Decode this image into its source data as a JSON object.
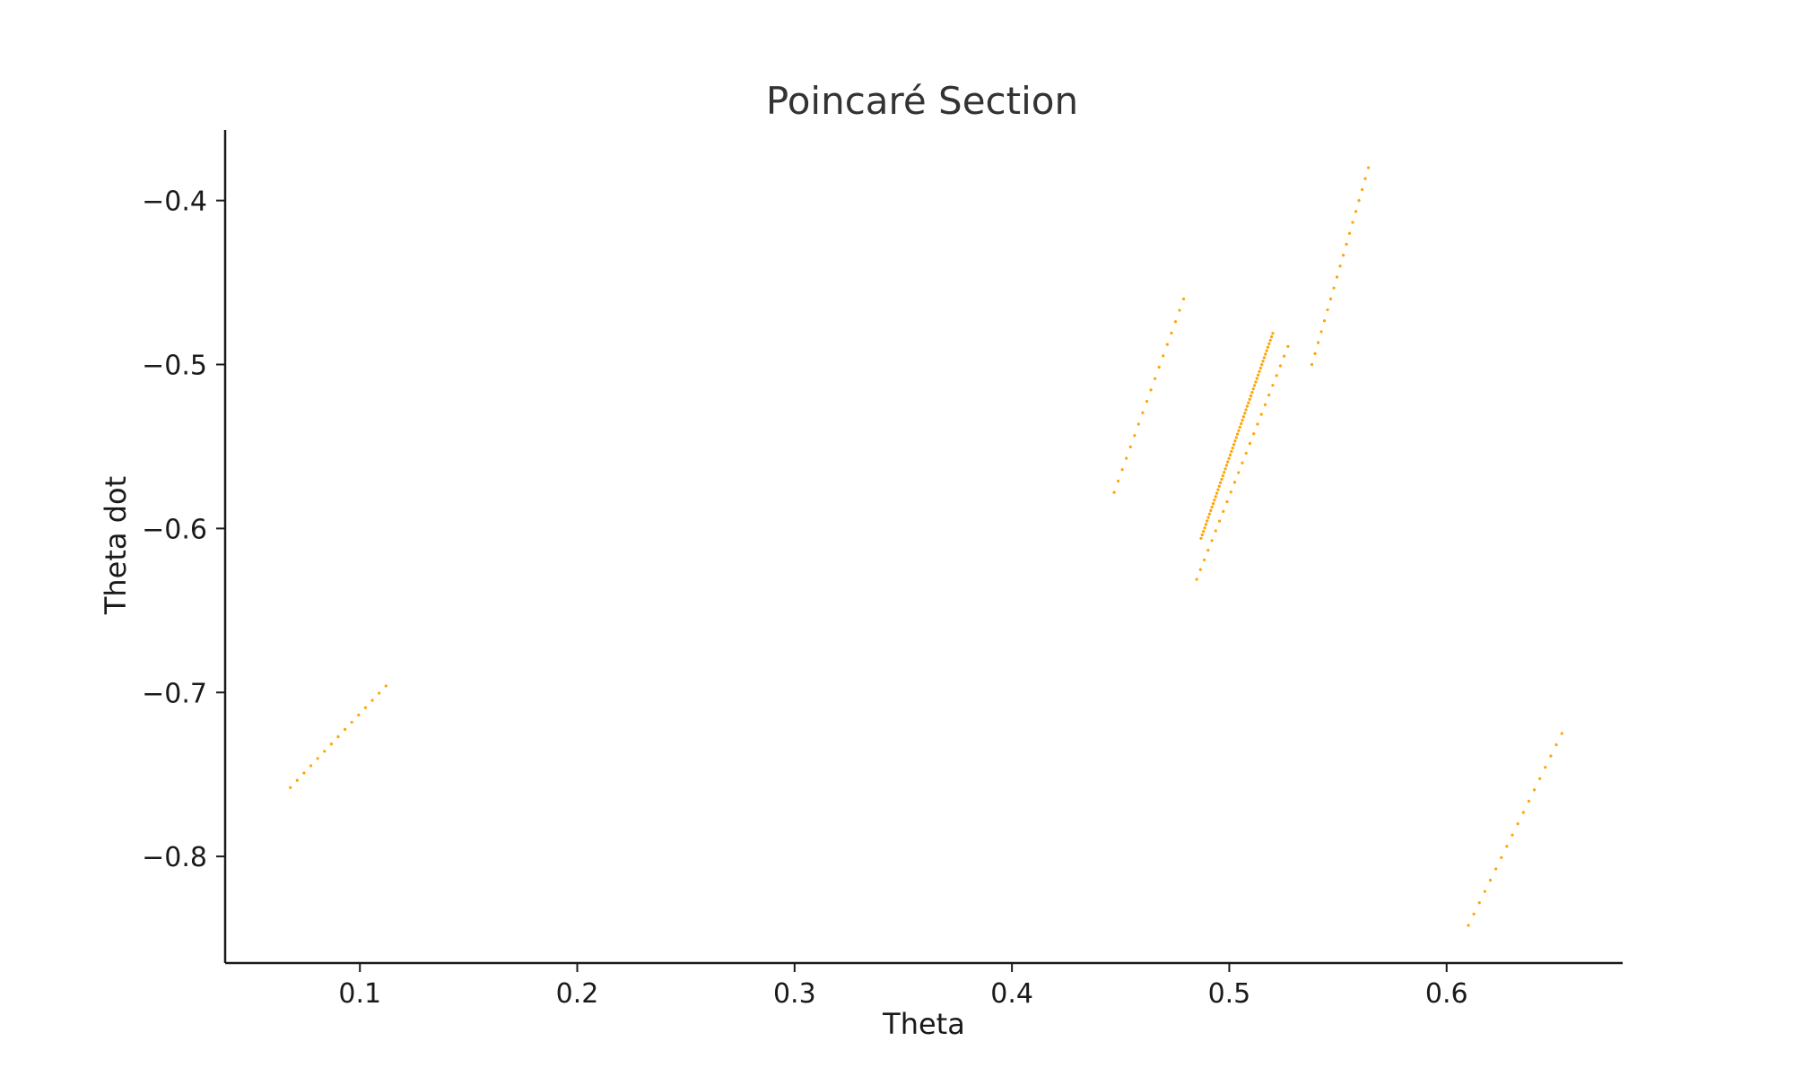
{
  "chart_data": {
    "type": "scatter",
    "title": "Poincaré Section",
    "xlabel": "Theta",
    "ylabel": "Theta dot",
    "xlim": [
      0.038,
      0.681
    ],
    "ylim": [
      -0.865,
      -0.357
    ],
    "xticks": [
      0.1,
      0.2,
      0.3,
      0.4,
      0.5,
      0.6
    ],
    "xtick_labels": [
      "0.1",
      "0.2",
      "0.3",
      "0.4",
      "0.5",
      "0.6"
    ],
    "yticks": [
      -0.4,
      -0.5,
      -0.6,
      -0.7,
      -0.8
    ],
    "ytick_labels": [
      "−0.4",
      "−0.5",
      "−0.6",
      "−0.7",
      "−0.8"
    ],
    "grid": false,
    "legend": false,
    "marker_color": "#ffa500",
    "clusters": [
      {
        "x0": 0.068,
        "y0": -0.758,
        "x1": 0.112,
        "y1": -0.696,
        "n": 15
      },
      {
        "x0": 0.447,
        "y0": -0.578,
        "x1": 0.479,
        "y1": -0.46,
        "n": 18
      },
      {
        "x0": 0.487,
        "y0": -0.606,
        "x1": 0.52,
        "y1": -0.481,
        "n": 60
      },
      {
        "x0": 0.485,
        "y0": -0.631,
        "x1": 0.527,
        "y1": -0.489,
        "n": 25
      },
      {
        "x0": 0.538,
        "y0": -0.5,
        "x1": 0.564,
        "y1": -0.38,
        "n": 19
      },
      {
        "x0": 0.61,
        "y0": -0.842,
        "x1": 0.653,
        "y1": -0.725,
        "n": 18
      }
    ]
  }
}
